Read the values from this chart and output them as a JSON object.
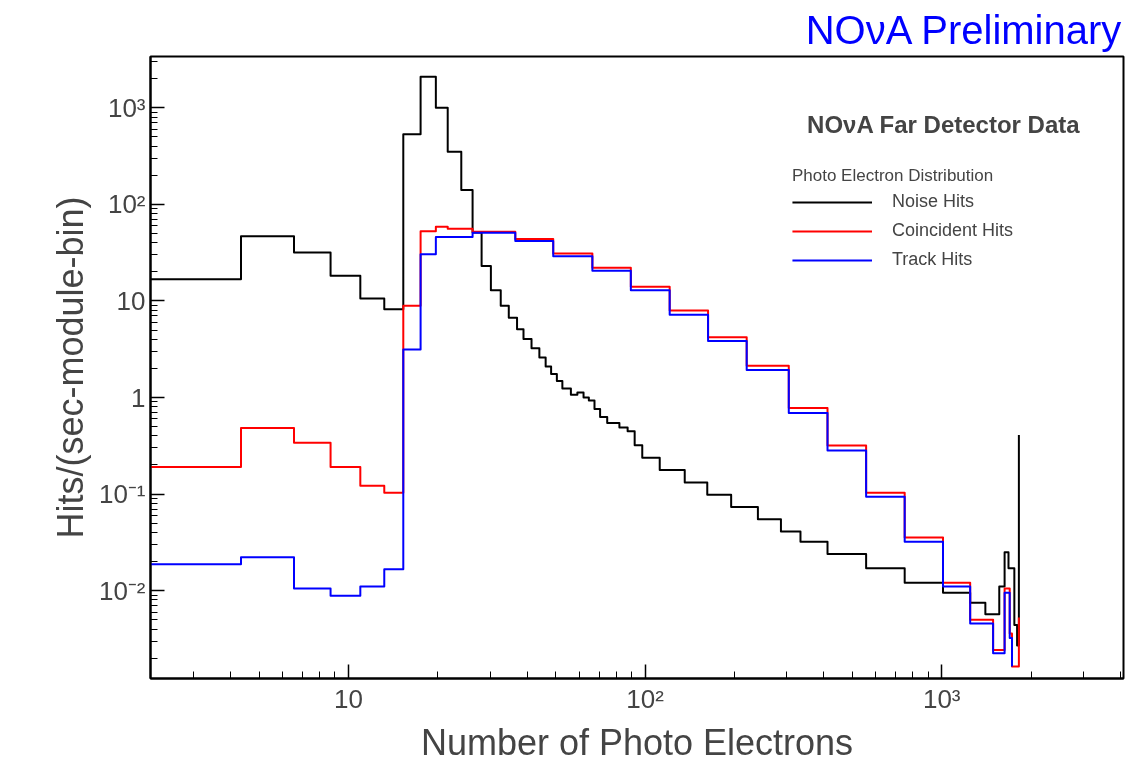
{
  "chart_data": {
    "type": "step",
    "title": "NOνA Preliminary",
    "subtitle": "NOνA Far Detector Data",
    "legend_title": "Photo Electron Distribution",
    "xlabel": "Number of Photo Electrons",
    "ylabel": "Hits/(sec-module-bin)",
    "log": "xy",
    "grid": false,
    "legend": "top right",
    "xlim": [
      2.15,
      4100
    ],
    "ylim": [
      0.00123,
      3400
    ],
    "xticks": [
      10,
      {
        "value": 100,
        "label": "10²"
      },
      {
        "value": 1000,
        "label": "10³"
      }
    ],
    "yticks": [
      {
        "value": 0.01,
        "label": "10⁻²"
      },
      {
        "value": 0.1,
        "label": "10⁻¹"
      },
      1,
      10,
      {
        "value": 100,
        "label": "10²"
      },
      {
        "value": 1000,
        "label": "10³"
      }
    ],
    "series": [
      {
        "name": "Noise Hits",
        "color": "#000000",
        "x": [
          2.15,
          4.34,
          6.55,
          8.7,
          10.96,
          13.2,
          15.3,
          17.5,
          19.7,
          21.6,
          24,
          26.2,
          28.1,
          30.2,
          32.6,
          34.7,
          37,
          38.9,
          41.4,
          44,
          46.2,
          48.2,
          50.4,
          52.6,
          56.2,
          59.1,
          62,
          64.6,
          67.5,
          70.5,
          74.5,
          81.9,
          87.3,
          92.2,
          97.8,
          112,
          136,
          162,
          195,
          240,
          287,
          334,
          412,
          556,
          750,
          1010,
          1247,
          1403,
          1513,
          1563,
          1629,
          1679,
          1757,
          1795,
          1820
        ],
        "values": [
          16.8,
          46.9,
          31.7,
          18.2,
          10.6,
          8.2,
          532,
          2100,
          1000,
          350,
          141,
          51,
          23,
          12.9,
          8.9,
          6.7,
          5.1,
          4.03,
          3.24,
          2.59,
          2.1,
          1.75,
          1.48,
          1.24,
          1.07,
          1.13,
          1.0,
          0.93,
          0.76,
          0.63,
          0.544,
          0.49,
          0.447,
          0.32,
          0.237,
          0.178,
          0.132,
          0.0986,
          0.0735,
          0.0548,
          0.041,
          0.0321,
          0.024,
          0.017,
          0.0121,
          0.0095,
          0.0075,
          0.0057,
          0.0057,
          0.011,
          0.025,
          0.017,
          0.0044,
          0.0027,
          0.41
        ]
      },
      {
        "name": "Coincident Hits",
        "color": "#ff0000",
        "x": [
          2.15,
          4.34,
          6.55,
          8.7,
          10.96,
          13.2,
          15.3,
          17.5,
          19.7,
          21.6,
          26.2,
          36.5,
          49,
          66.4,
          89.5,
          121,
          163,
          220,
          305,
          412,
          556,
          750,
          1010,
          1247,
          1490,
          1629,
          1695,
          1725,
          1820
        ],
        "values": [
          0.191,
          0.483,
          0.34,
          0.191,
          0.122,
          0.103,
          8.9,
          52.7,
          58.6,
          55.8,
          52.2,
          43.7,
          31,
          22.1,
          14,
          7.94,
          4.21,
          2.13,
          0.78,
          0.318,
          0.103,
          0.0354,
          0.0121,
          0.005,
          0.00242,
          0.0105,
          0.00359,
          0.00164,
          0.00528
        ]
      },
      {
        "name": "Track Hits",
        "color": "#0000ff",
        "x": [
          2.15,
          4.34,
          6.55,
          8.7,
          10.96,
          13.2,
          15.3,
          17.5,
          19.7,
          26.2,
          36.5,
          49,
          66.4,
          89.5,
          121,
          163,
          220,
          305,
          412,
          556,
          750,
          1010,
          1247,
          1490,
          1629,
          1695,
          1725
        ],
        "values": [
          0.0188,
          0.0222,
          0.0105,
          0.00885,
          0.011,
          0.0166,
          3.15,
          30.5,
          46,
          50.7,
          41.7,
          29,
          20.6,
          12.9,
          7.2,
          3.84,
          1.93,
          0.69,
          0.283,
          0.094,
          0.032,
          0.011,
          0.00457,
          0.00224,
          0.0095,
          0.00324,
          0.00164
        ]
      }
    ]
  }
}
